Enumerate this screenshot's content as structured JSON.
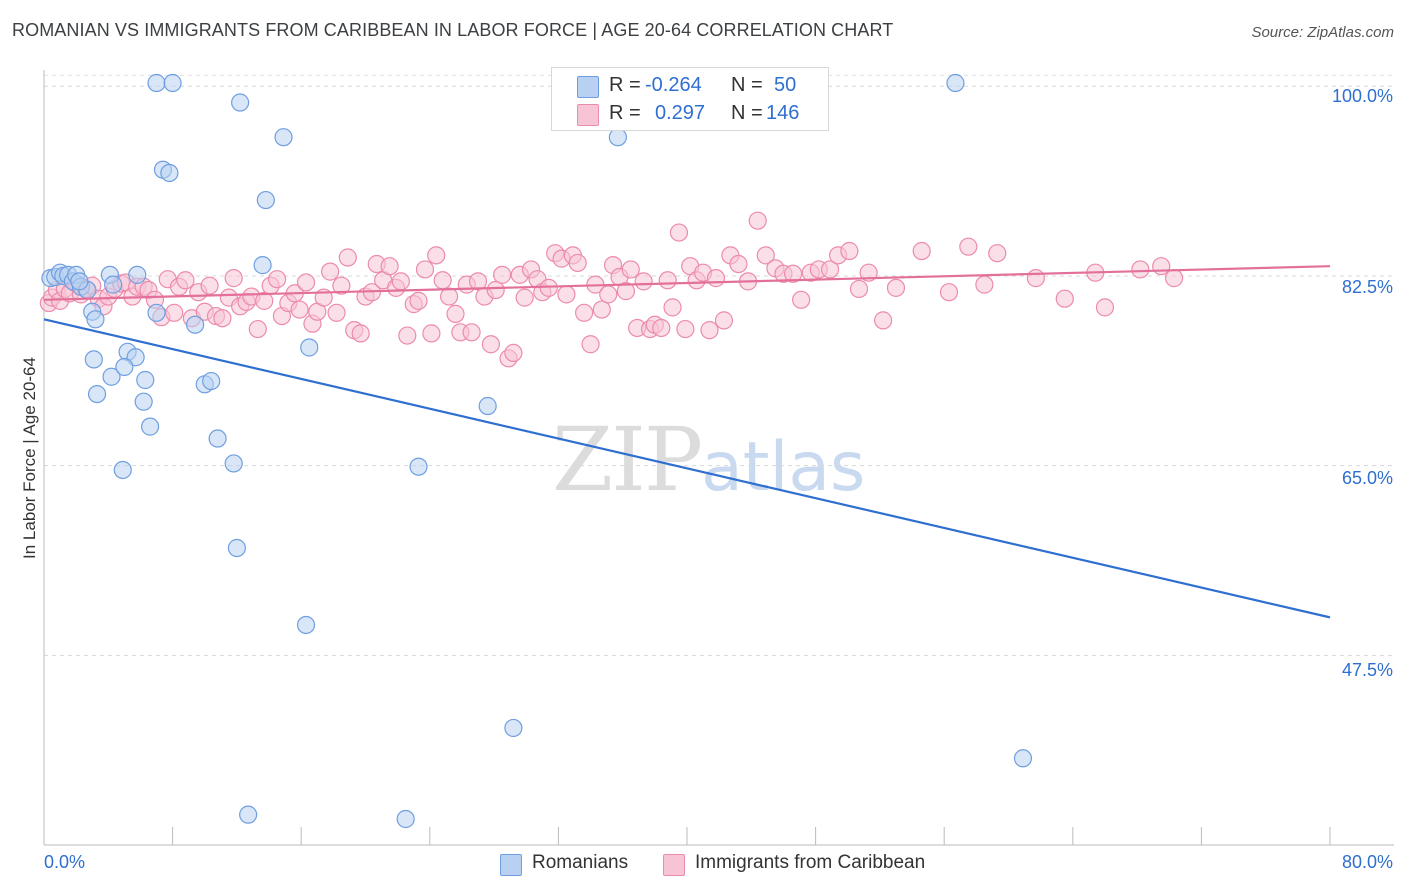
{
  "title": "ROMANIAN VS IMMIGRANTS FROM CARIBBEAN IN LABOR FORCE | AGE 20-64 CORRELATION CHART",
  "source": "Source: ZipAtlas.com",
  "watermark": {
    "zip": "ZIP",
    "atlas": "atlas"
  },
  "stats": {
    "r_label": "R =",
    "n_label": "N =",
    "romanians": {
      "r": "-0.264",
      "n": "50"
    },
    "caribbean": {
      "r": "0.297",
      "n": "146"
    }
  },
  "colors": {
    "blue_fill": "#b8d1f3",
    "blue_stroke": "#6f9fe0",
    "blue_line": "#2f6fd0",
    "pink_fill": "#f7c4d5",
    "pink_stroke": "#ec8bab",
    "pink_line": "#e3709a",
    "tick_text": "#2f6fd0",
    "grid": "#d8d8d8"
  },
  "chart_data": {
    "type": "scatter",
    "title": "ROMANIAN VS IMMIGRANTS FROM CARIBBEAN IN LABOR FORCE | AGE 20-64 CORRELATION CHART",
    "xlabel": "",
    "ylabel": "In Labor Force | Age 20-64",
    "xlim": [
      0,
      80
    ],
    "ylim": [
      30,
      101.5
    ],
    "x_tick_labels": [
      "0.0%",
      "80.0%"
    ],
    "y_ticks": [
      {
        "value": 100.0,
        "label": "100.0%"
      },
      {
        "value": 82.5,
        "label": "82.5%"
      },
      {
        "value": 65.0,
        "label": "65.0%"
      },
      {
        "value": 47.5,
        "label": "47.5%"
      }
    ],
    "grid": "horizontal dashed",
    "legend_position": "bottom",
    "series": [
      {
        "name": "Romanians",
        "color": "#6f9fe0",
        "trend": {
          "x": [
            0,
            80
          ],
          "y": [
            78.5,
            51.0
          ]
        },
        "points": [
          [
            0.4,
            82.3
          ],
          [
            0.7,
            82.4
          ],
          [
            1.0,
            82.8
          ],
          [
            1.2,
            82.5
          ],
          [
            1.5,
            82.6
          ],
          [
            1.8,
            82.0
          ],
          [
            2.0,
            82.6
          ],
          [
            2.3,
            81.5
          ],
          [
            2.7,
            81.2
          ],
          [
            3.0,
            79.2
          ],
          [
            3.2,
            78.5
          ],
          [
            4.1,
            82.6
          ],
          [
            4.3,
            81.7
          ],
          [
            5.8,
            82.6
          ],
          [
            7.0,
            100.3
          ],
          [
            8.0,
            100.3
          ],
          [
            12.2,
            98.5
          ],
          [
            14.9,
            95.3
          ],
          [
            13.8,
            89.5
          ],
          [
            13.6,
            83.5
          ],
          [
            7.4,
            92.3
          ],
          [
            7.8,
            92.0
          ],
          [
            3.1,
            74.8
          ],
          [
            3.3,
            71.6
          ],
          [
            4.2,
            73.2
          ],
          [
            5.2,
            75.5
          ],
          [
            5.7,
            75.0
          ],
          [
            6.3,
            72.9
          ],
          [
            6.2,
            70.9
          ],
          [
            6.6,
            68.6
          ],
          [
            5.0,
            74.1
          ],
          [
            4.9,
            64.6
          ],
          [
            7.0,
            79.1
          ],
          [
            9.4,
            78.0
          ],
          [
            10.0,
            72.5
          ],
          [
            10.4,
            72.8
          ],
          [
            10.8,
            67.5
          ],
          [
            11.8,
            65.2
          ],
          [
            12.0,
            57.4
          ],
          [
            16.5,
            75.9
          ],
          [
            16.3,
            50.3
          ],
          [
            23.3,
            64.9
          ],
          [
            27.6,
            70.5
          ],
          [
            35.7,
            95.3
          ],
          [
            29.2,
            40.8
          ],
          [
            56.7,
            100.3
          ],
          [
            60.9,
            38.0
          ],
          [
            12.7,
            32.8
          ],
          [
            22.5,
            32.4
          ],
          [
            2.2,
            82.0
          ]
        ]
      },
      {
        "name": "Immigrants from Caribbean",
        "color": "#ec8bab",
        "trend": {
          "x": [
            0,
            80
          ],
          "y": [
            80.3,
            83.4
          ]
        },
        "points": [
          [
            0.3,
            80.0
          ],
          [
            0.5,
            80.5
          ],
          [
            0.8,
            81.2
          ],
          [
            1.0,
            80.2
          ],
          [
            1.3,
            81.3
          ],
          [
            1.6,
            80.9
          ],
          [
            2.0,
            81.8
          ],
          [
            2.3,
            80.8
          ],
          [
            2.6,
            81.3
          ],
          [
            3.0,
            81.6
          ],
          [
            3.4,
            80.4
          ],
          [
            3.7,
            79.7
          ],
          [
            4.0,
            80.6
          ],
          [
            4.4,
            81.3
          ],
          [
            4.8,
            81.8
          ],
          [
            5.1,
            81.9
          ],
          [
            5.5,
            80.6
          ],
          [
            5.8,
            81.5
          ],
          [
            6.2,
            81.5
          ],
          [
            6.5,
            81.2
          ],
          [
            6.9,
            80.3
          ],
          [
            7.3,
            78.7
          ],
          [
            7.7,
            82.2
          ],
          [
            8.1,
            79.1
          ],
          [
            8.4,
            81.5
          ],
          [
            8.8,
            82.1
          ],
          [
            9.2,
            78.6
          ],
          [
            9.6,
            81.0
          ],
          [
            10.0,
            79.2
          ],
          [
            10.3,
            81.6
          ],
          [
            10.7,
            78.8
          ],
          [
            11.1,
            78.6
          ],
          [
            11.5,
            80.5
          ],
          [
            11.8,
            82.3
          ],
          [
            12.2,
            79.7
          ],
          [
            12.6,
            80.1
          ],
          [
            12.9,
            80.6
          ],
          [
            13.3,
            77.6
          ],
          [
            13.7,
            80.2
          ],
          [
            14.1,
            81.6
          ],
          [
            14.5,
            82.2
          ],
          [
            14.8,
            78.8
          ],
          [
            15.2,
            80.0
          ],
          [
            15.6,
            80.9
          ],
          [
            15.9,
            79.4
          ],
          [
            16.3,
            81.9
          ],
          [
            16.7,
            78.1
          ],
          [
            17.0,
            79.2
          ],
          [
            17.4,
            80.5
          ],
          [
            17.8,
            82.9
          ],
          [
            18.2,
            79.1
          ],
          [
            18.5,
            81.6
          ],
          [
            18.9,
            84.2
          ],
          [
            19.3,
            77.5
          ],
          [
            19.7,
            77.2
          ],
          [
            20.0,
            80.6
          ],
          [
            20.4,
            81.0
          ],
          [
            20.7,
            83.6
          ],
          [
            21.1,
            82.1
          ],
          [
            21.5,
            83.4
          ],
          [
            21.9,
            81.4
          ],
          [
            22.2,
            82.0
          ],
          [
            22.6,
            77.0
          ],
          [
            23.0,
            79.9
          ],
          [
            23.3,
            80.2
          ],
          [
            23.7,
            83.1
          ],
          [
            24.1,
            77.2
          ],
          [
            24.4,
            84.4
          ],
          [
            24.8,
            82.1
          ],
          [
            25.2,
            80.6
          ],
          [
            25.6,
            79.0
          ],
          [
            25.9,
            77.3
          ],
          [
            26.3,
            81.7
          ],
          [
            26.6,
            77.3
          ],
          [
            27.0,
            82.0
          ],
          [
            27.4,
            80.6
          ],
          [
            27.8,
            76.2
          ],
          [
            28.1,
            81.2
          ],
          [
            28.5,
            82.6
          ],
          [
            28.9,
            74.9
          ],
          [
            29.2,
            75.4
          ],
          [
            29.6,
            82.6
          ],
          [
            29.9,
            80.5
          ],
          [
            30.3,
            83.1
          ],
          [
            30.7,
            82.2
          ],
          [
            31.0,
            81.0
          ],
          [
            31.4,
            81.4
          ],
          [
            31.8,
            84.6
          ],
          [
            32.2,
            84.1
          ],
          [
            32.5,
            80.8
          ],
          [
            32.9,
            84.4
          ],
          [
            33.2,
            83.7
          ],
          [
            33.6,
            79.1
          ],
          [
            34.0,
            76.2
          ],
          [
            34.3,
            81.7
          ],
          [
            34.7,
            79.4
          ],
          [
            35.1,
            80.8
          ],
          [
            35.4,
            83.5
          ],
          [
            35.8,
            82.4
          ],
          [
            36.2,
            81.1
          ],
          [
            36.5,
            83.1
          ],
          [
            36.9,
            77.7
          ],
          [
            37.3,
            82.0
          ],
          [
            37.7,
            77.6
          ],
          [
            38.0,
            78.0
          ],
          [
            38.4,
            77.7
          ],
          [
            38.8,
            82.1
          ],
          [
            39.1,
            79.6
          ],
          [
            39.5,
            86.5
          ],
          [
            39.9,
            77.6
          ],
          [
            40.2,
            83.4
          ],
          [
            40.6,
            82.1
          ],
          [
            41.0,
            82.8
          ],
          [
            41.4,
            77.5
          ],
          [
            41.8,
            82.3
          ],
          [
            42.3,
            78.4
          ],
          [
            42.7,
            84.4
          ],
          [
            43.2,
            83.6
          ],
          [
            43.8,
            82.0
          ],
          [
            44.4,
            87.6
          ],
          [
            44.9,
            84.4
          ],
          [
            45.5,
            83.2
          ],
          [
            46.0,
            82.7
          ],
          [
            46.6,
            82.7
          ],
          [
            47.1,
            80.3
          ],
          [
            47.7,
            82.8
          ],
          [
            48.2,
            83.1
          ],
          [
            48.9,
            83.1
          ],
          [
            49.4,
            84.4
          ],
          [
            50.1,
            84.8
          ],
          [
            50.7,
            81.3
          ],
          [
            51.3,
            82.8
          ],
          [
            52.2,
            78.4
          ],
          [
            53.0,
            81.4
          ],
          [
            54.6,
            84.8
          ],
          [
            56.3,
            81.0
          ],
          [
            57.5,
            85.2
          ],
          [
            58.5,
            81.7
          ],
          [
            59.3,
            84.6
          ],
          [
            61.7,
            82.3
          ],
          [
            63.5,
            80.4
          ],
          [
            65.4,
            82.8
          ],
          [
            66.0,
            79.6
          ],
          [
            68.2,
            83.1
          ],
          [
            69.5,
            83.4
          ],
          [
            70.3,
            82.3
          ]
        ]
      }
    ]
  },
  "legend": [
    "Romanians",
    "Immigrants from Caribbean"
  ]
}
